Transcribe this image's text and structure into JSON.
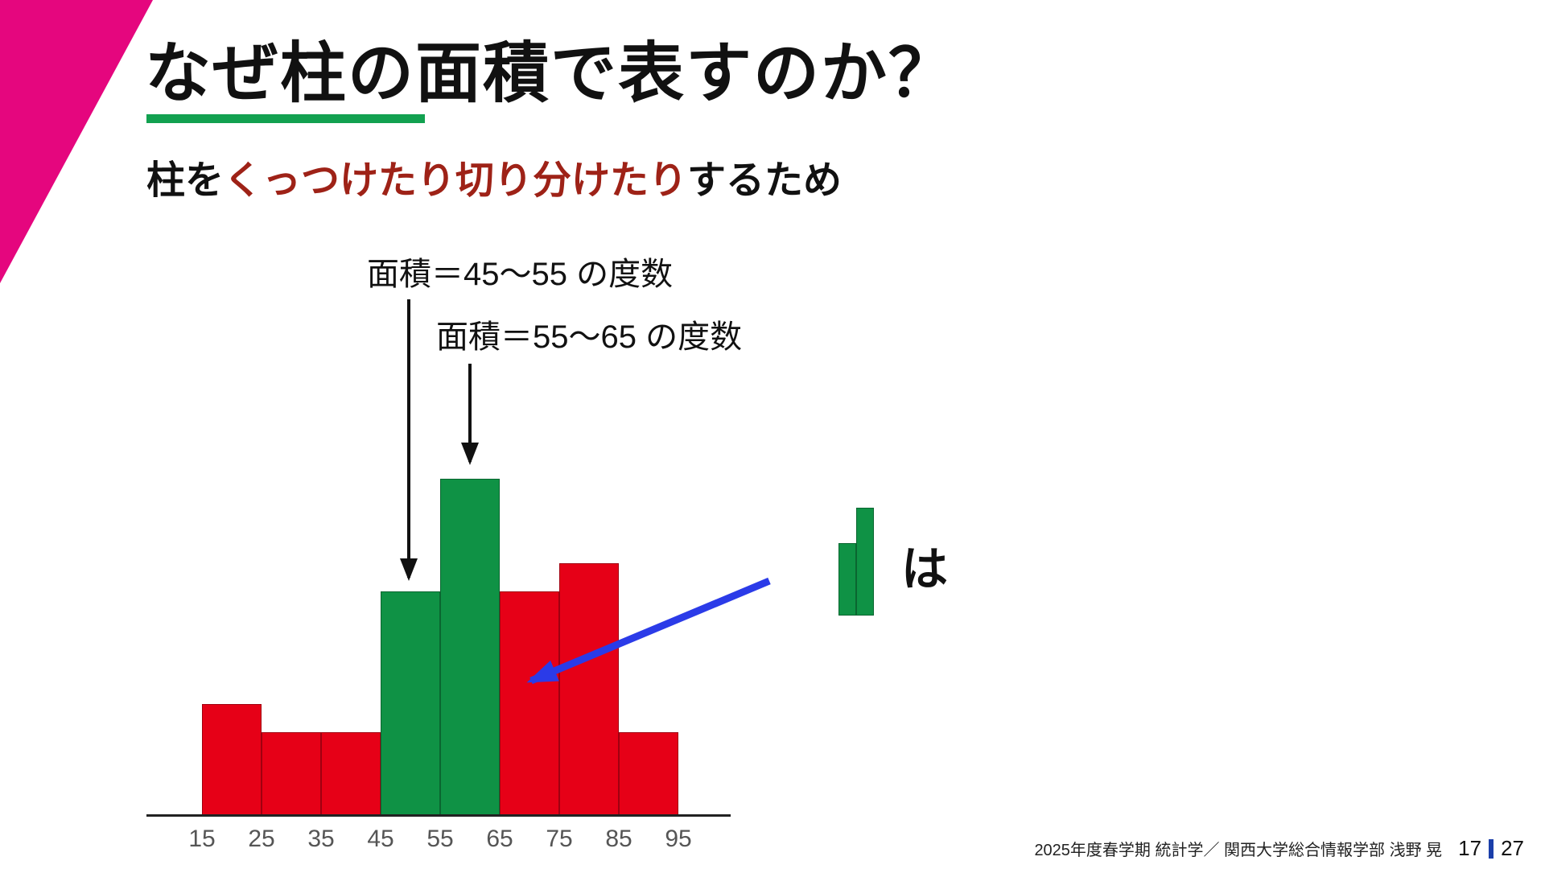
{
  "slide": {
    "title": "なぜ柱の面積で表すのか？",
    "subtitle": {
      "prefix": "柱を",
      "highlight": "くっつけたり切り分けたり",
      "suffix": "するため"
    },
    "annotation_top": "面積＝45～55 の度数",
    "annotation_bottom": "面積＝55～65 の度数",
    "legend_particle": "は",
    "footer": {
      "credit": "2025年度春学期  統計学／ 関西大学総合情報学部 浅野 晃",
      "page_current": "17",
      "page_total": "27"
    }
  },
  "colors": {
    "accent_pink": "#e5067e",
    "title_underline_green": "#12a150",
    "bar_red": "#e60017",
    "bar_green": "#0f9245",
    "highlight_dark_red": "#9e2217",
    "arrow_blue": "#2b3be8",
    "page_divider_blue": "#1b3faa"
  },
  "chart_data": {
    "type": "bar",
    "kind": "histogram",
    "title": "",
    "xlabel": "",
    "ylabel": "",
    "bin_edges": [
      15,
      25,
      35,
      45,
      55,
      65,
      75,
      85,
      95
    ],
    "values": [
      4,
      3,
      3,
      8,
      12,
      8,
      9,
      3
    ],
    "bar_colors": [
      "red",
      "red",
      "red",
      "green",
      "green",
      "red",
      "red",
      "red"
    ],
    "ylim": [
      0,
      12
    ],
    "grid": false,
    "annotations": [
      "面積＝45～55 の度数",
      "面積＝55～65 の度数"
    ]
  },
  "mini_chart": {
    "values": [
      8,
      12
    ],
    "color": "green"
  }
}
